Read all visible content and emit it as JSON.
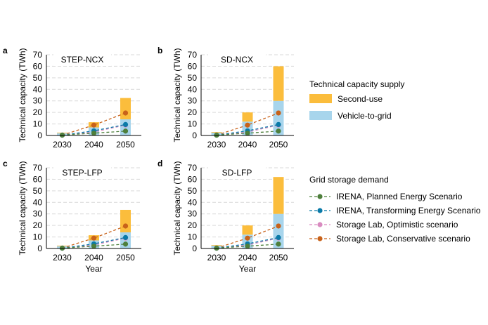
{
  "colors": {
    "second_use": "#fbbd3c",
    "v2g": "#a8d5ec",
    "grid_line": "#d9d9d9",
    "axis": "#000000",
    "irena_planned": "#4e7f3c",
    "irena_transforming": "#0a7aa8",
    "storage_optimistic": "#d98bc0",
    "storage_conservative": "#c8621a"
  },
  "legend": {
    "supply_title": "Technical capacity supply",
    "supply_items": [
      {
        "label": "Second-use",
        "color_key": "second_use"
      },
      {
        "label": "Vehicle-to-grid",
        "color_key": "v2g"
      }
    ],
    "demand_title": "Grid storage demand",
    "demand_items": [
      {
        "label": "IRENA, Planned Energy Scenario",
        "color_key": "irena_planned"
      },
      {
        "label": "IRENA, Transforming Energy Scenario",
        "color_key": "irena_transforming"
      },
      {
        "label": "Storage Lab, Optimistic scenario",
        "color_key": "storage_optimistic"
      },
      {
        "label": "Storage Lab, Conservative scenario",
        "color_key": "storage_conservative"
      }
    ]
  },
  "chart_data": [
    {
      "panel_letter": "a",
      "title": "STEP-NCX",
      "type": "bar+line",
      "categories": [
        "2030",
        "2040",
        "2050"
      ],
      "ylabel": "Technical capacity (TWh)",
      "xlabel": "",
      "ylim": [
        0,
        70
      ],
      "yticks": [
        "0",
        "10",
        "20",
        "30",
        "40",
        "50",
        "60",
        "70"
      ],
      "grid": true,
      "bars": {
        "v2g": [
          2,
          7,
          14
        ],
        "second_use": [
          0.5,
          4.5,
          18.5
        ]
      },
      "lines": {
        "irena_planned": [
          0.3,
          2,
          3.8
        ],
        "irena_transforming": [
          0.3,
          4,
          9.5
        ],
        "storage_optimistic": [
          0.3,
          3,
          9
        ],
        "storage_conservative": [
          0.3,
          9,
          19.5
        ]
      }
    },
    {
      "panel_letter": "b",
      "title": "SD-NCX",
      "type": "bar+line",
      "categories": [
        "2030",
        "2040",
        "2050"
      ],
      "ylabel": "Technical capacity (TWh)",
      "xlabel": "",
      "ylim": [
        0,
        70
      ],
      "yticks": [
        "0",
        "10",
        "20",
        "30",
        "40",
        "50",
        "60",
        "70"
      ],
      "grid": true,
      "bars": {
        "v2g": [
          2.5,
          12,
          30
        ],
        "second_use": [
          0.5,
          8,
          30
        ]
      },
      "lines": {
        "irena_planned": [
          0.3,
          2,
          3.8
        ],
        "irena_transforming": [
          0.3,
          4,
          9.5
        ],
        "storage_optimistic": [
          0.3,
          3,
          9
        ],
        "storage_conservative": [
          0.3,
          9,
          19.5
        ]
      }
    },
    {
      "panel_letter": "c",
      "title": "STEP-LFP",
      "type": "bar+line",
      "categories": [
        "2030",
        "2040",
        "2050"
      ],
      "ylabel": "Technical capacity (TWh)",
      "xlabel": "Year",
      "ylim": [
        0,
        70
      ],
      "yticks": [
        "0",
        "10",
        "20",
        "30",
        "40",
        "50",
        "60",
        "70"
      ],
      "grid": true,
      "bars": {
        "v2g": [
          2,
          7,
          14
        ],
        "second_use": [
          0.5,
          4.5,
          19.5
        ]
      },
      "lines": {
        "irena_planned": [
          0.3,
          2,
          3.8
        ],
        "irena_transforming": [
          0.3,
          4,
          9.5
        ],
        "storage_optimistic": [
          0.3,
          3,
          9
        ],
        "storage_conservative": [
          0.3,
          9,
          19.5
        ]
      }
    },
    {
      "panel_letter": "d",
      "title": "SD-LFP",
      "type": "bar+line",
      "categories": [
        "2030",
        "2040",
        "2050"
      ],
      "ylabel": "Technical capacity (TWh)",
      "xlabel": "Year",
      "ylim": [
        0,
        70
      ],
      "yticks": [
        "0",
        "10",
        "20",
        "30",
        "40",
        "50",
        "60",
        "70"
      ],
      "grid": true,
      "bars": {
        "v2g": [
          2.5,
          12,
          30
        ],
        "second_use": [
          0.5,
          8,
          32
        ]
      },
      "lines": {
        "irena_planned": [
          0.3,
          2,
          3.8
        ],
        "irena_transforming": [
          0.3,
          4,
          9.5
        ],
        "storage_optimistic": [
          0.3,
          3,
          9
        ],
        "storage_conservative": [
          0.3,
          9,
          19.5
        ]
      }
    }
  ]
}
